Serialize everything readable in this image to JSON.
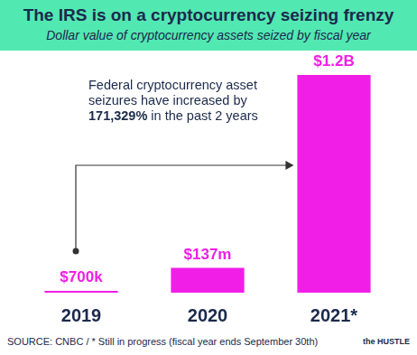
{
  "chart_data": {
    "type": "bar",
    "title": "The IRS is on a cryptocurrency seizing frenzy",
    "subtitle": "Dollar value of cryptocurrency assets seized by fiscal year",
    "categories": [
      "2019",
      "2020",
      "2021*"
    ],
    "values": [
      700000,
      137000000,
      1200000000
    ],
    "value_labels": [
      "$700k",
      "$137m",
      "$1.2B"
    ],
    "color": "#f01ee6",
    "ylim": [
      0,
      1200000000
    ],
    "data_labels": true,
    "tick_labels": "x",
    "grid": false,
    "annotation": "Federal cryptocurrency asset seizures have increased by 171,329% in the past 2 years",
    "source": "SOURCE: CNBC / * Still in progress (fiscal year ends September 30th)",
    "brand": "the HUSTLE"
  }
}
